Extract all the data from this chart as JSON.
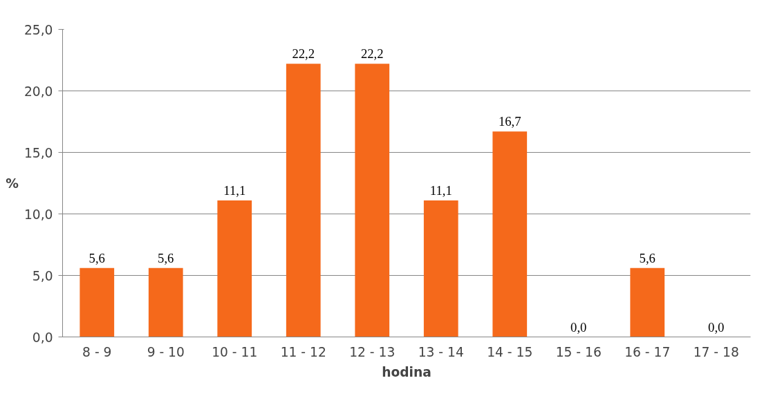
{
  "chart_data": {
    "type": "bar",
    "xlabel": "hodina",
    "ylabel": "%",
    "categories": [
      "8 - 9",
      "9 - 10",
      "10 - 11",
      "11 - 12",
      "12 - 13",
      "13 - 14",
      "14 - 15",
      "15 - 16",
      "16 - 17",
      "17 - 18"
    ],
    "values": [
      5.6,
      5.6,
      11.1,
      22.2,
      22.2,
      11.1,
      16.7,
      0.0,
      5.6,
      0.0
    ],
    "value_labels": [
      "5,6",
      "5,6",
      "11,1",
      "22,2",
      "22,2",
      "11,1",
      "16,7",
      "0,0",
      "5,6",
      "0,0"
    ],
    "color": "#f5691b",
    "ylim": [
      0,
      25
    ],
    "yticks": [
      {
        "value": 0,
        "label": "0,0"
      },
      {
        "value": 5,
        "label": "5,0"
      },
      {
        "value": 10,
        "label": "10,0"
      },
      {
        "value": 15,
        "label": "15,0"
      },
      {
        "value": 20,
        "label": "20,0"
      },
      {
        "value": 25,
        "label": "25,0"
      }
    ],
    "grid": "y"
  }
}
